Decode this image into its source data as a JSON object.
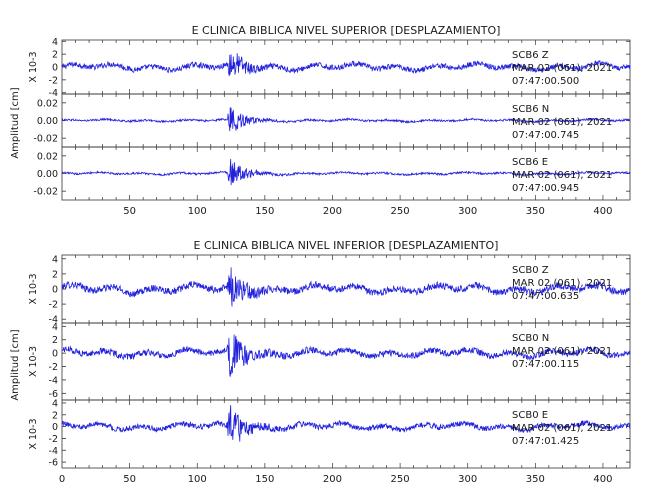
{
  "chart_data": [
    {
      "type": "line",
      "title": "E CLINICA BIBLICA NIVEL SUPERIOR [DESPLAZAMIENTO]",
      "ylabel": "Amplitud [cm]",
      "xlim": [
        0,
        420
      ],
      "xticks": [
        50,
        100,
        150,
        200,
        250,
        300,
        350,
        400
      ],
      "line_color": "#2222dd",
      "panels": [
        {
          "channel": "SCB6   Z",
          "date": "MAR 02 (061), 2021",
          "time": "07:47:00.500",
          "scale_label": "X 10-3",
          "ylim": [
            -4.2,
            4.2
          ],
          "yticks": [
            {
              "v": 4,
              "label": "4"
            },
            {
              "v": 2,
              "label": "2"
            },
            {
              "v": 0,
              "label": "0"
            },
            {
              "v": -2,
              "label": "-2"
            },
            {
              "v": -4,
              "label": "-4"
            }
          ],
          "noise": 0.45,
          "peak": 3.8
        },
        {
          "channel": "SCB6   N",
          "date": "MAR 02 (061), 2021",
          "time": "07:47:00.745",
          "scale_label": "",
          "ylim": [
            -0.03,
            0.03
          ],
          "yticks": [
            {
              "v": 0.02,
              "label": "0.02"
            },
            {
              "v": 0,
              "label": "0.00"
            },
            {
              "v": -0.02,
              "label": "-0.02"
            }
          ],
          "noise": 0.0012,
          "peak": 0.024
        },
        {
          "channel": "SCB6   E",
          "date": "MAR 02 (061), 2021",
          "time": "07:47:00.945",
          "scale_label": "",
          "ylim": [
            -0.03,
            0.03
          ],
          "yticks": [
            {
              "v": 0.02,
              "label": "0.02"
            },
            {
              "v": 0,
              "label": "0.00"
            },
            {
              "v": -0.02,
              "label": "-0.02"
            }
          ],
          "noise": 0.0012,
          "peak": 0.027
        }
      ]
    },
    {
      "type": "line",
      "title": "E CLINICA BIBLICA NIVEL INFERIOR [DESPLAZAMIENTO]",
      "ylabel": "Amplitud [cm]",
      "xlim": [
        0,
        420
      ],
      "xticks": [
        0,
        50,
        100,
        150,
        200,
        250,
        300,
        350,
        400
      ],
      "line_color": "#2222dd",
      "panels": [
        {
          "channel": "SCB0   Z",
          "date": "MAR 02 (061), 2021",
          "time": "07:47:00.635",
          "scale_label": "X 10-3",
          "ylim": [
            -4.5,
            4.5
          ],
          "yticks": [
            {
              "v": 4,
              "label": "4"
            },
            {
              "v": 2,
              "label": "2"
            },
            {
              "v": 0,
              "label": "0"
            },
            {
              "v": -2,
              "label": "-2"
            },
            {
              "v": -4,
              "label": "-4"
            }
          ],
          "noise": 0.5,
          "peak": 3.8
        },
        {
          "channel": "SCB0   N",
          "date": "MAR 02 (061), 2021",
          "time": "07:47:00.115",
          "scale_label": "X 10-3",
          "ylim": [
            -7,
            4.5
          ],
          "yticks": [
            {
              "v": 4,
              "label": "4"
            },
            {
              "v": 2,
              "label": "2"
            },
            {
              "v": 0,
              "label": "0"
            },
            {
              "v": -2,
              "label": "-2"
            },
            {
              "v": -4,
              "label": "-4"
            },
            {
              "v": -6,
              "label": "-6"
            }
          ],
          "noise": 0.5,
          "peak": 5.5
        },
        {
          "channel": "SCB0   E",
          "date": "MAR 02 (061), 2021",
          "time": "07:47:01.425",
          "scale_label": "X 10-3",
          "ylim": [
            -7,
            4.5
          ],
          "yticks": [
            {
              "v": 4,
              "label": "4"
            },
            {
              "v": 2,
              "label": "2"
            },
            {
              "v": 0,
              "label": "0"
            },
            {
              "v": -2,
              "label": "-2"
            },
            {
              "v": -4,
              "label": "-4"
            },
            {
              "v": -6,
              "label": "-6"
            }
          ],
          "noise": 0.5,
          "peak": 5.5
        }
      ]
    }
  ]
}
